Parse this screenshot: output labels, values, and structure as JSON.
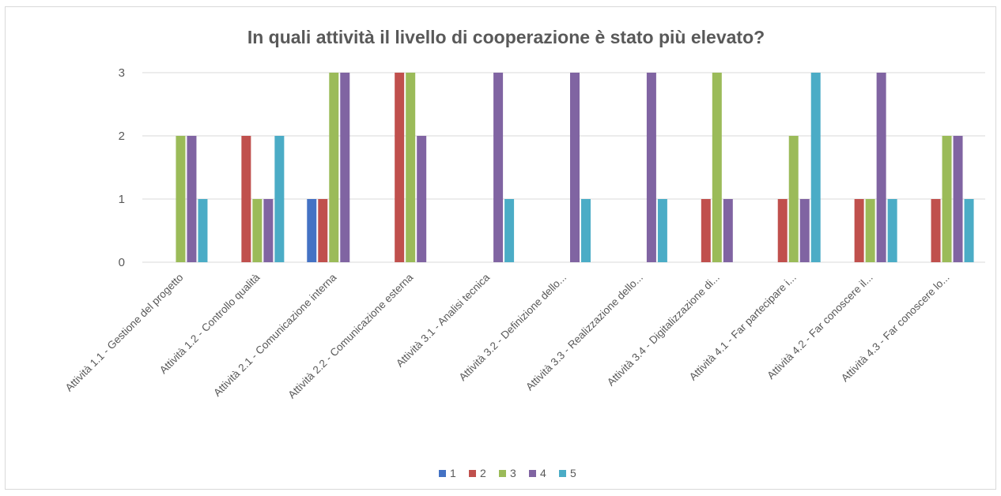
{
  "chart_data": {
    "type": "bar",
    "title": "In quali attività il livello di cooperazione è stato più elevato?",
    "xlabel": "",
    "ylabel": "",
    "ylim": [
      0,
      3
    ],
    "yticks": [
      0,
      1,
      2,
      3
    ],
    "grid": true,
    "legend_position": "bottom",
    "categories": [
      "Attività 1.1 - Gestione del progetto",
      "Attività 1.2 - Controllo qualità",
      "Attività 2.1 - Comunicazione interna",
      "Attività 2.2 - Comunicazione esterna",
      "Attività 3.1 - Analisi tecnica",
      "Attività 3.2 - Definizione dello...",
      "Attività 3.3 - Realizzazione dello...",
      "Attività 3.4 - Digitalizzazione di...",
      "Attività 4.1 - Far partecipare i...",
      "Attività 4.2 - Far conoscere il...",
      "Attività 4.3 - Far conoscere lo..."
    ],
    "series": [
      {
        "name": "1",
        "color": "#4472c4",
        "values": [
          0,
          0,
          1,
          0,
          0,
          0,
          0,
          0,
          0,
          0,
          0
        ]
      },
      {
        "name": "2",
        "color": "#c0504d",
        "values": [
          0,
          2,
          1,
          3,
          0,
          0,
          0,
          1,
          1,
          1,
          1
        ]
      },
      {
        "name": "3",
        "color": "#9bbb59",
        "values": [
          2,
          1,
          3,
          3,
          0,
          0,
          0,
          3,
          2,
          1,
          2
        ]
      },
      {
        "name": "4",
        "color": "#8064a2",
        "values": [
          2,
          1,
          3,
          2,
          3,
          3,
          3,
          1,
          1,
          3,
          2
        ]
      },
      {
        "name": "5",
        "color": "#4bacc6",
        "values": [
          1,
          2,
          0,
          0,
          1,
          1,
          1,
          0,
          3,
          1,
          1
        ]
      }
    ],
    "gridline_color": "#d9d9d9"
  }
}
